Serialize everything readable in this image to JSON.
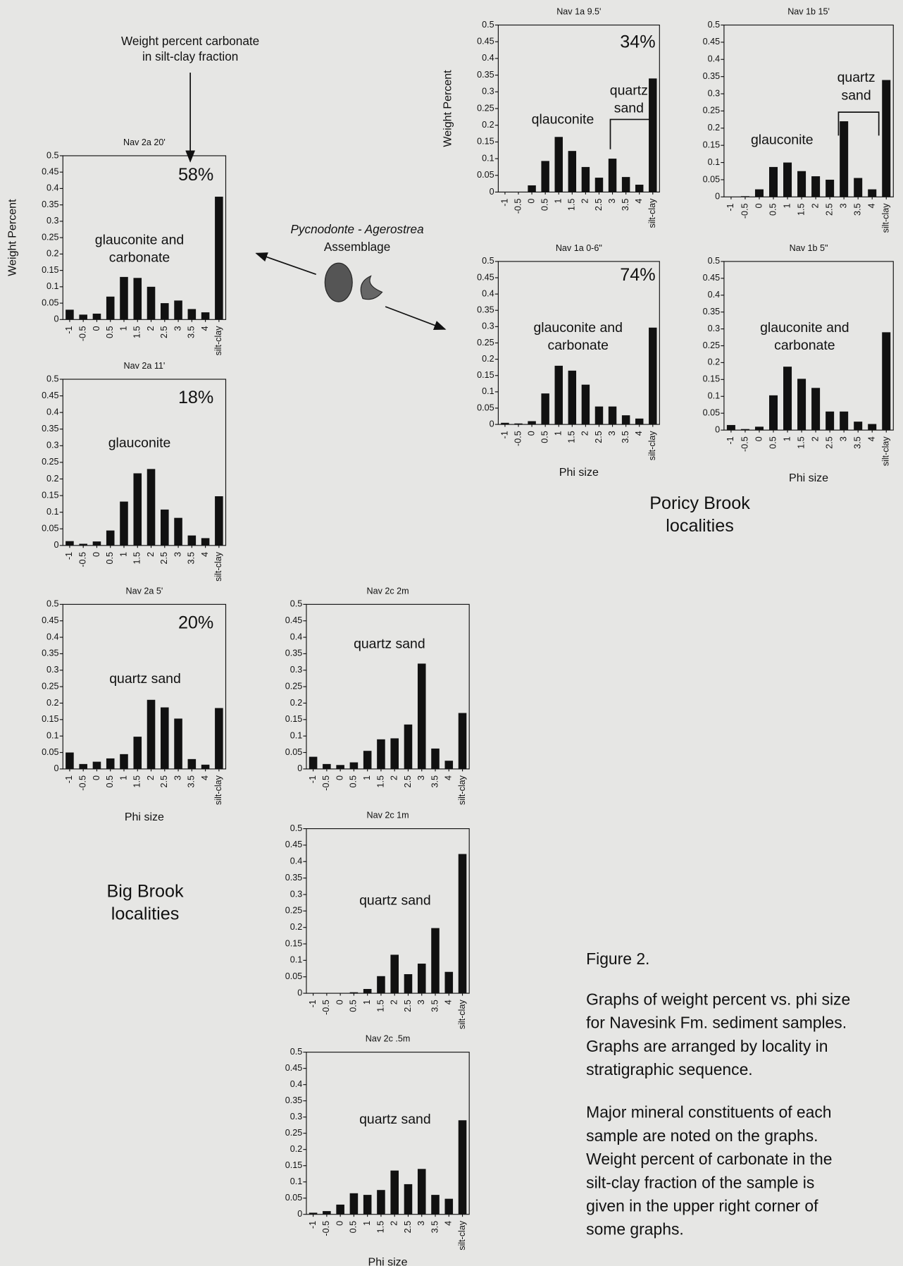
{
  "chart_data": [
    {
      "type": "bar",
      "title": "Nav 2a 20'",
      "ylabel": "Weight Percent",
      "categories": [
        "-1",
        "-0.5",
        "0",
        "0.5",
        "1",
        "1.5",
        "2",
        "2.5",
        "3",
        "3.5",
        "4",
        "silt-clay"
      ],
      "values": [
        0.03,
        0.015,
        0.018,
        0.07,
        0.13,
        0.127,
        0.1,
        0.05,
        0.058,
        0.032,
        0.022,
        0.375
      ],
      "carbonate": "58%",
      "labels": [
        [
          "glauconite and",
          "carbonate"
        ]
      ],
      "color": "#111111",
      "ylim": [
        0,
        0.5
      ],
      "yticks": [
        0,
        0.05,
        0.1,
        0.15,
        0.2,
        0.25,
        0.3,
        0.35,
        0.4,
        0.45,
        0.5
      ]
    },
    {
      "type": "bar",
      "title": "Nav 2a 11'",
      "categories": [
        "-1",
        "-0.5",
        "0",
        "0.5",
        "1",
        "1.5",
        "2",
        "2.5",
        "3",
        "3.5",
        "4",
        "silt-clay"
      ],
      "values": [
        0.013,
        0.005,
        0.012,
        0.045,
        0.132,
        0.217,
        0.23,
        0.108,
        0.083,
        0.03,
        0.022,
        0.148
      ],
      "carbonate": "18%",
      "labels": [
        [
          "glauconite"
        ]
      ],
      "color": "#111111",
      "ylim": [
        0,
        0.5
      ],
      "yticks": [
        0,
        0.05,
        0.1,
        0.15,
        0.2,
        0.25,
        0.3,
        0.35,
        0.4,
        0.45,
        0.5
      ]
    },
    {
      "type": "bar",
      "title": "Nav 2a 5'",
      "xlabel": "Phi size",
      "categories": [
        "-1",
        "-0.5",
        "0",
        "0.5",
        "1",
        "1.5",
        "2",
        "2.5",
        "3",
        "3.5",
        "4",
        "silt-clay"
      ],
      "values": [
        0.05,
        0.015,
        0.022,
        0.032,
        0.045,
        0.098,
        0.21,
        0.187,
        0.153,
        0.03,
        0.013,
        0.185
      ],
      "carbonate": "20%",
      "labels": [
        [
          "quartz sand"
        ]
      ],
      "color": "#111111",
      "ylim": [
        0,
        0.5
      ],
      "yticks": [
        0,
        0.05,
        0.1,
        0.15,
        0.2,
        0.25,
        0.3,
        0.35,
        0.4,
        0.45,
        0.5
      ]
    },
    {
      "type": "bar",
      "title": "Nav 2c 2m",
      "categories": [
        "-1",
        "-0.5",
        "0",
        "0.5",
        "1",
        "1.5",
        "2",
        "2.5",
        "3",
        "3.5",
        "4",
        "silt-clay"
      ],
      "values": [
        0.037,
        0.015,
        0.012,
        0.02,
        0.055,
        0.09,
        0.093,
        0.135,
        0.32,
        0.062,
        0.025,
        0.17
      ],
      "labels": [
        [
          "quartz sand"
        ]
      ],
      "color": "#111111",
      "ylim": [
        0,
        0.5
      ],
      "yticks": [
        0,
        0.05,
        0.1,
        0.15,
        0.2,
        0.25,
        0.3,
        0.35,
        0.4,
        0.45,
        0.5
      ]
    },
    {
      "type": "bar",
      "title": "Nav 2c 1m",
      "categories": [
        "-1",
        "-0.5",
        "0",
        "0.5",
        "1",
        "1.5",
        "2",
        "2.5",
        "3",
        "3.5",
        "4",
        "silt-clay"
      ],
      "values": [
        0,
        0,
        0,
        0.003,
        0.013,
        0.052,
        0.117,
        0.058,
        0.09,
        0.198,
        0.065,
        0.423
      ],
      "labels": [
        [
          "quartz sand"
        ]
      ],
      "color": "#111111",
      "ylim": [
        0,
        0.5
      ],
      "yticks": [
        0,
        0.05,
        0.1,
        0.15,
        0.2,
        0.25,
        0.3,
        0.35,
        0.4,
        0.45,
        0.5
      ]
    },
    {
      "type": "bar",
      "title": "Nav 2c .5m",
      "xlabel": "Phi size",
      "categories": [
        "-1",
        "-0.5",
        "0",
        "0.5",
        "1",
        "1.5",
        "2",
        "2.5",
        "3",
        "3.5",
        "4",
        "silt-clay"
      ],
      "values": [
        0.005,
        0.01,
        0.03,
        0.065,
        0.06,
        0.075,
        0.135,
        0.093,
        0.14,
        0.06,
        0.048,
        0.29
      ],
      "labels": [
        [
          "quartz sand"
        ]
      ],
      "color": "#111111",
      "ylim": [
        0,
        0.5
      ],
      "yticks": [
        0,
        0.05,
        0.1,
        0.15,
        0.2,
        0.25,
        0.3,
        0.35,
        0.4,
        0.45,
        0.5
      ]
    },
    {
      "type": "bar",
      "title": "Nav 1a 9.5'",
      "ylabel": "Weight Percent",
      "categories": [
        "-1",
        "-0.5",
        "0",
        "0.5",
        "1",
        "1.5",
        "2",
        "2.5",
        "3",
        "3.5",
        "4",
        "silt-clay"
      ],
      "values": [
        0,
        0,
        0.02,
        0.093,
        0.165,
        0.123,
        0.075,
        0.043,
        0.1,
        0.045,
        0.022,
        0.34
      ],
      "carbonate": "34%",
      "labels": [
        [
          "qlauconite"
        ],
        [
          "quartz",
          "sand"
        ]
      ],
      "color": "#111111",
      "ylim": [
        0,
        0.5
      ],
      "yticks": [
        0,
        0.05,
        0.1,
        0.15,
        0.2,
        0.25,
        0.3,
        0.35,
        0.4,
        0.45,
        0.5
      ]
    },
    {
      "type": "bar",
      "title": "Nav 1b 15'",
      "categories": [
        "-1",
        "-0.5",
        "0",
        "0.5",
        "1",
        "1.5",
        "2",
        "2.5",
        "3",
        "3.5",
        "4",
        "silt-clay"
      ],
      "values": [
        0,
        0.002,
        0.022,
        0.087,
        0.1,
        0.075,
        0.06,
        0.05,
        0.22,
        0.055,
        0.022,
        0.34
      ],
      "labels": [
        [
          "glauconite"
        ],
        [
          "quartz",
          "sand"
        ]
      ],
      "color": "#111111",
      "ylim": [
        0,
        0.5
      ],
      "yticks": [
        0,
        0.05,
        0.1,
        0.15,
        0.2,
        0.25,
        0.3,
        0.35,
        0.4,
        0.45,
        0.5
      ]
    },
    {
      "type": "bar",
      "title": "Nav 1a  0-6\"",
      "xlabel": "Phi size",
      "categories": [
        "-1",
        "-0.5",
        "0",
        "0.5",
        "1",
        "1.5",
        "2",
        "2.5",
        "3",
        "3.5",
        "4",
        "silt-clay"
      ],
      "values": [
        0.005,
        0.003,
        0.01,
        0.095,
        0.18,
        0.165,
        0.122,
        0.055,
        0.055,
        0.028,
        0.018,
        0.297
      ],
      "carbonate": "74%",
      "labels": [
        [
          "glauconite and",
          "carbonate"
        ]
      ],
      "color": "#111111",
      "ylim": [
        0,
        0.5
      ],
      "yticks": [
        0,
        0.05,
        0.1,
        0.15,
        0.2,
        0.25,
        0.3,
        0.35,
        0.4,
        0.45,
        0.5
      ]
    },
    {
      "type": "bar",
      "title": "Nav 1b  5\"",
      "xlabel": "Phi size",
      "categories": [
        "-1",
        "-0.5",
        "0",
        "0.5",
        "1",
        "1.5",
        "2",
        "2.5",
        "3",
        "3.5",
        "4",
        "silt-clay"
      ],
      "values": [
        0.015,
        0.003,
        0.01,
        0.103,
        0.188,
        0.152,
        0.125,
        0.055,
        0.055,
        0.025,
        0.018,
        0.29
      ],
      "labels": [
        [
          "glauconite and",
          "carbonate"
        ]
      ],
      "color": "#111111",
      "ylim": [
        0,
        0.5
      ],
      "yticks": [
        0,
        0.05,
        0.1,
        0.15,
        0.2,
        0.25,
        0.3,
        0.35,
        0.4,
        0.45,
        0.5
      ]
    }
  ],
  "carbonate_note": [
    "Weight percent carbonate",
    "in silt-clay fraction"
  ],
  "assemblage": [
    "Pycnodonte - Agerostrea",
    "Assemblage"
  ],
  "localities": {
    "big_brook": [
      "Big Brook",
      "localities"
    ],
    "poricy_brook": [
      "Poricy Brook",
      "localities"
    ]
  },
  "figure": {
    "label": "Figure 2.",
    "caption": [
      [
        "Graphs of weight percent vs. phi size",
        "for Navesink Fm. sediment samples.",
        "Graphs are arranged by locality in",
        "stratigraphic sequence."
      ],
      [
        "Major mineral constituents of each",
        "sample are noted on the graphs.",
        "Weight percent of carbonate in the",
        "silt-clay fraction of the sample is",
        "given in the upper right corner of",
        "some graphs."
      ]
    ]
  }
}
